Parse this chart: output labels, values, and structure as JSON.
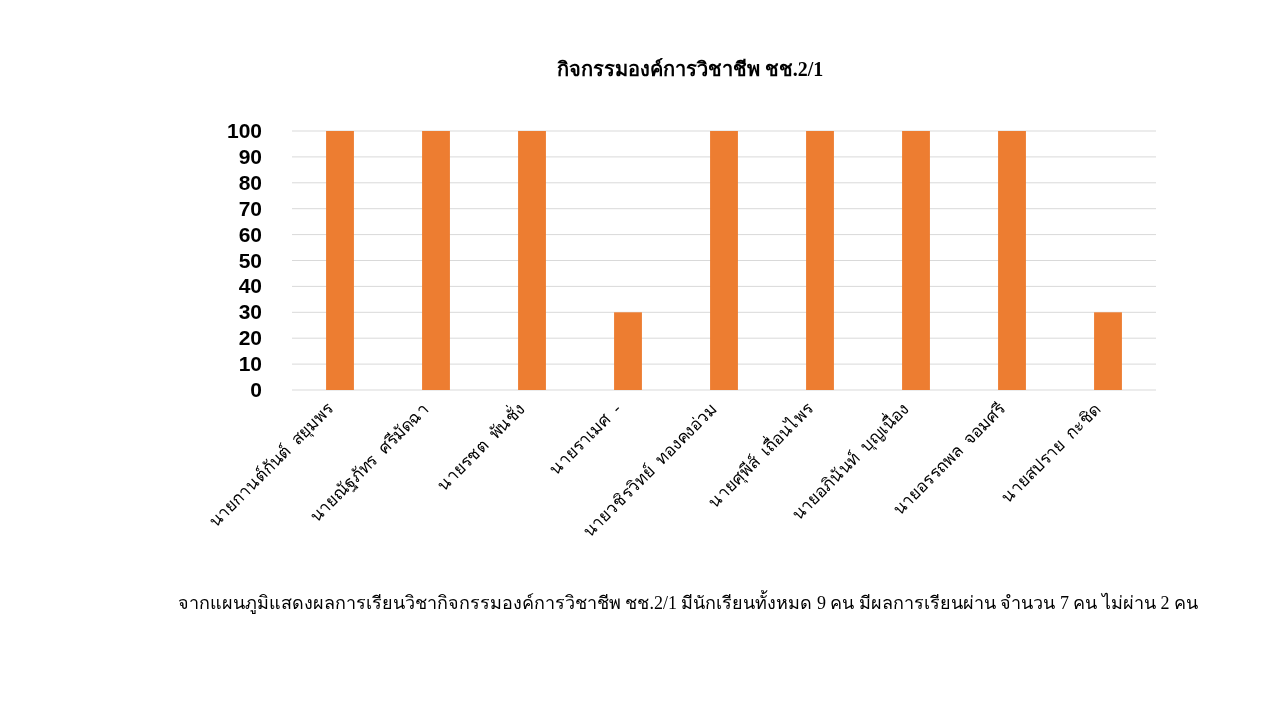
{
  "chart_data": {
    "type": "bar",
    "title": "กิจกรรมองค์การวิชาชีพ ชช.2/1",
    "categories": [
      "นายกานต์กันต์  สยุมพร",
      "นายณัฐภัทร  ศรีมัดฉา",
      "นายรชต  พันชั่ง",
      "นายราเมศ  -",
      "นายวชิรวิทย์  ทองคงอ่วม",
      "นายศุพีส์  เถื่อนไพร",
      "นายอภินันท์  บุญเนื่อง",
      "นายอรรถพล  จอมศรี",
      "นายสปราย  กะชิด"
    ],
    "values": [
      100,
      100,
      100,
      30,
      100,
      100,
      100,
      100,
      30
    ],
    "color": "#ed7d31",
    "ylim": [
      0,
      100
    ],
    "yticks": [
      0,
      10,
      20,
      30,
      40,
      50,
      60,
      70,
      80,
      90,
      100
    ],
    "grid": "y",
    "annotations": [
      "จากแผนภูมิแสดงผลการเรียนวิชากิจกรรมองค์การวิชาชีพ ชช.2/1 มีนักเรียนทั้งหมด 9 คน มีผลการเรียนผ่าน จำนวน 7 คน ไม่ผ่าน 2 คน"
    ]
  }
}
